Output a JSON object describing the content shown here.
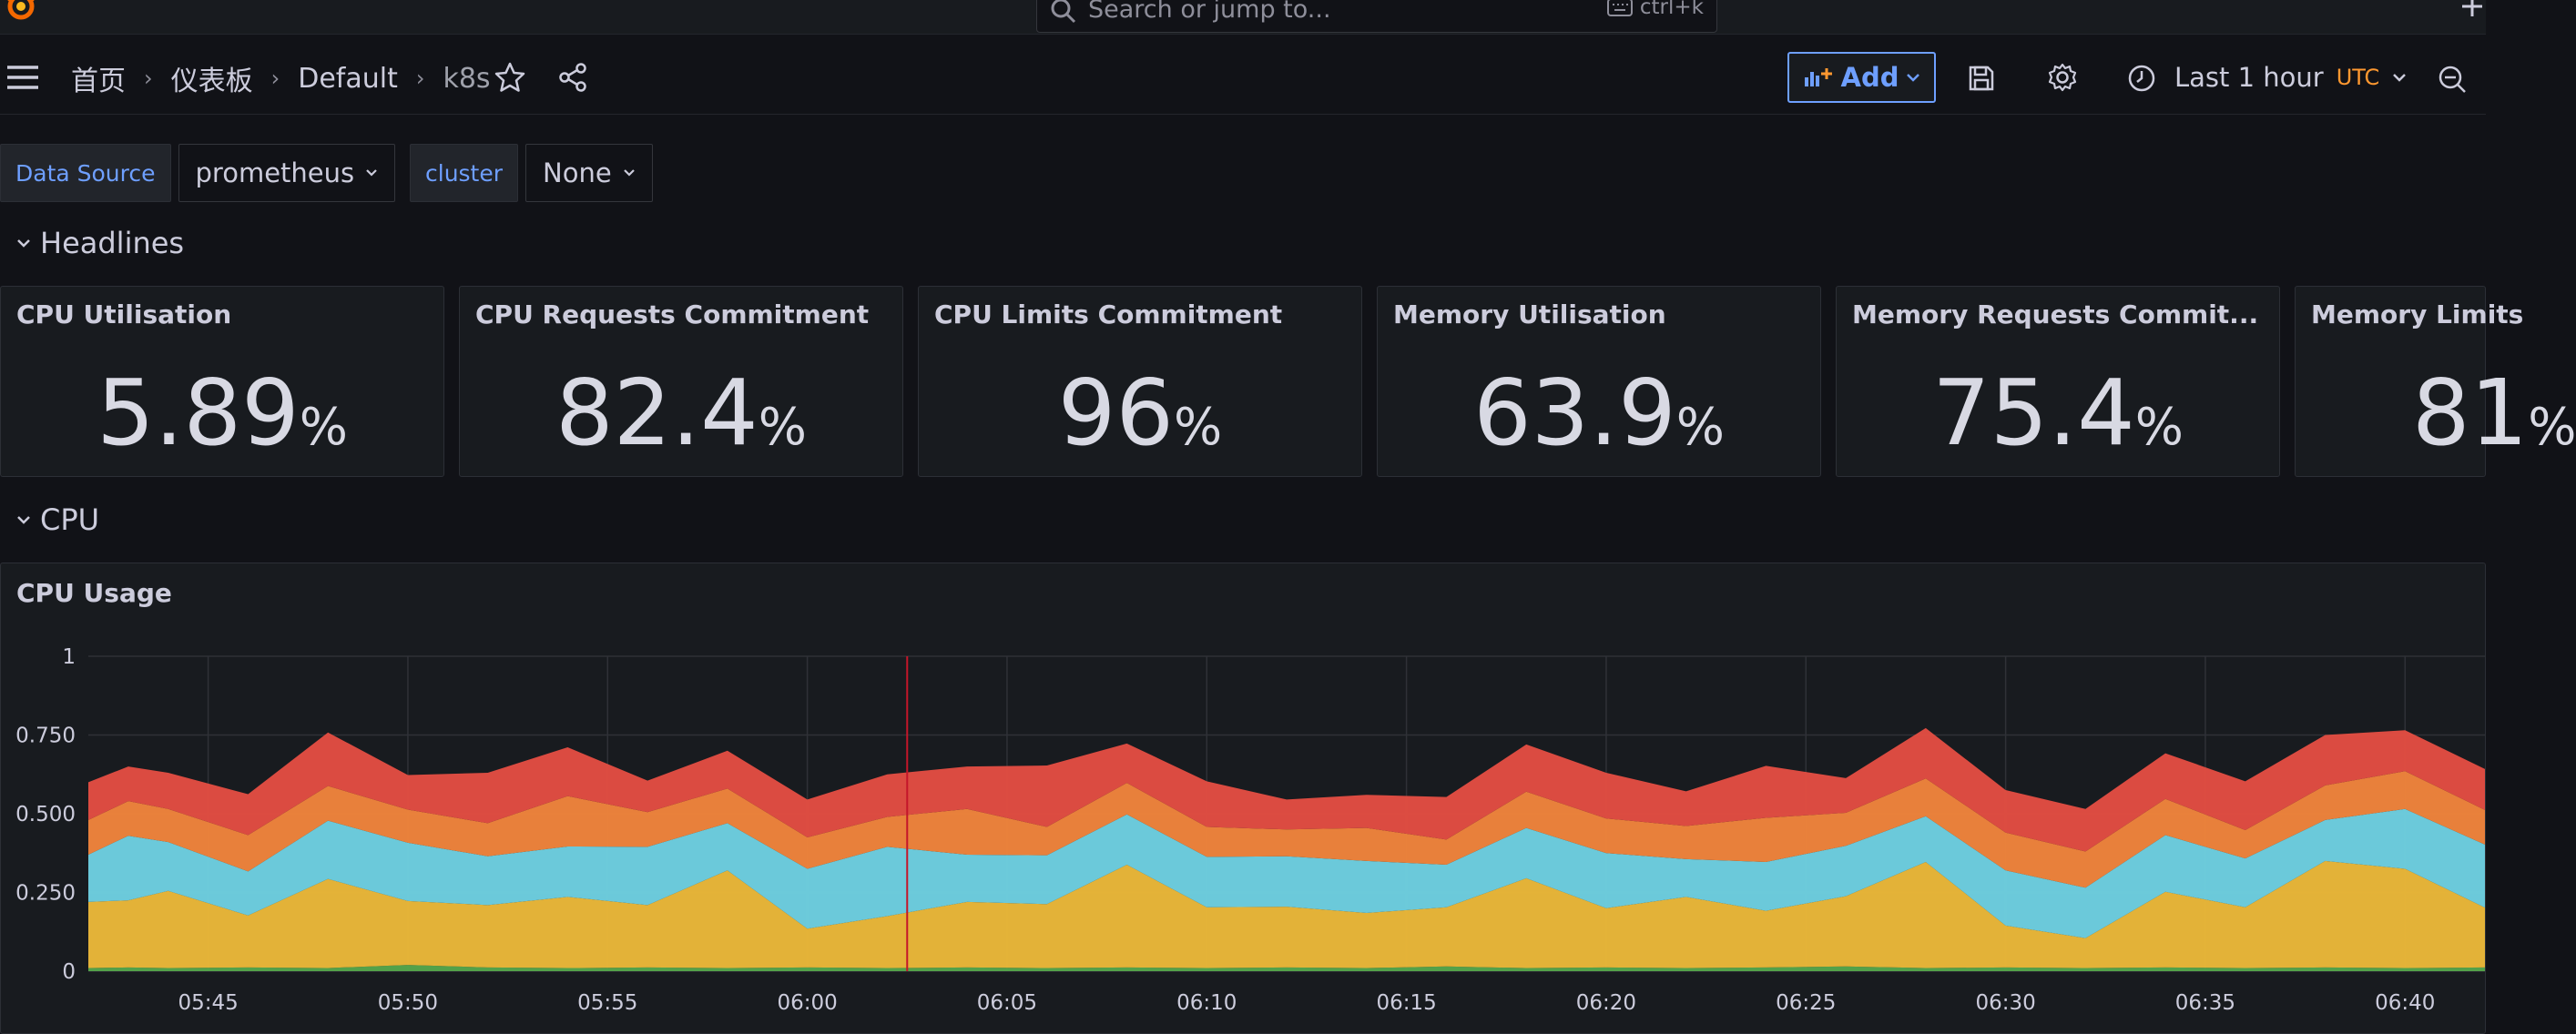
{
  "header": {
    "search_placeholder": "Search or jump to...",
    "search_shortcut": "ctrl+k"
  },
  "breadcrumb": {
    "home": "首页",
    "dashboards": "仪表板",
    "folder": "Default",
    "current": "k8s"
  },
  "toolbar": {
    "add_label": "Add",
    "time_range": "Last 1 hour",
    "timezone": "UTC"
  },
  "variables": [
    {
      "label": "Data Source",
      "value": "prometheus"
    },
    {
      "label": "cluster",
      "value": "None"
    }
  ],
  "rows": {
    "headlines": "Headlines",
    "cpu": "CPU"
  },
  "stats": [
    {
      "title": "CPU Utilisation",
      "value": "5.89",
      "unit": "%"
    },
    {
      "title": "CPU Requests Commitment",
      "value": "82.4",
      "unit": "%"
    },
    {
      "title": "CPU Limits Commitment",
      "value": "96",
      "unit": "%"
    },
    {
      "title": "Memory Utilisation",
      "value": "63.9",
      "unit": "%"
    },
    {
      "title": "Memory Requests Commit...",
      "value": "75.4",
      "unit": "%"
    },
    {
      "title": "Memory Limits",
      "value": "81",
      "unit": "%"
    }
  ],
  "colors": {
    "accent": "#6e9fff",
    "utc": "#ff9830",
    "series": [
      "#56a64b",
      "#eab839",
      "#6ed0e0",
      "#ef843c",
      "#e24d42"
    ],
    "cursor": "#c4162a"
  },
  "chart_data": {
    "type": "area",
    "stacked": true,
    "title": "CPU Usage",
    "ylim": [
      0,
      1
    ],
    "yticks": [
      0,
      0.25,
      0.5,
      0.75,
      1
    ],
    "ytick_labels": [
      "0",
      "0.250",
      "0.500",
      "0.750",
      "1"
    ],
    "xlim": [
      "05:42",
      "06:42"
    ],
    "xticks": [
      "05:45",
      "05:50",
      "05:55",
      "06:00",
      "06:05",
      "06:10",
      "06:15",
      "06:20",
      "06:25",
      "06:30",
      "06:35",
      "06:40"
    ],
    "grid": true,
    "legend": "none",
    "cursor_x": "06:02:30",
    "x": [
      "05:42",
      "05:43",
      "05:44",
      "05:46",
      "05:48",
      "05:50",
      "05:52",
      "05:54",
      "05:56",
      "05:58",
      "06:00",
      "06:02",
      "06:04",
      "06:06",
      "06:08",
      "06:10",
      "06:12",
      "06:14",
      "06:16",
      "06:18",
      "06:20",
      "06:22",
      "06:24",
      "06:26",
      "06:28",
      "06:30",
      "06:32",
      "06:34",
      "06:36",
      "06:38",
      "06:40",
      "06:42"
    ],
    "series": [
      {
        "values": [
          0.01,
          0.012,
          0.01,
          0.012,
          0.01,
          0.02,
          0.012,
          0.01,
          0.012,
          0.01,
          0.012,
          0.01,
          0.012,
          0.01,
          0.012,
          0.01,
          0.012,
          0.01,
          0.015,
          0.01,
          0.012,
          0.01,
          0.012,
          0.015,
          0.01,
          0.012,
          0.01,
          0.012,
          0.01,
          0.012,
          0.01,
          0.012
        ]
      },
      {
        "values": [
          0.21,
          0.213,
          0.245,
          0.165,
          0.283,
          0.203,
          0.198,
          0.226,
          0.198,
          0.31,
          0.123,
          0.165,
          0.208,
          0.203,
          0.326,
          0.193,
          0.193,
          0.175,
          0.188,
          0.285,
          0.188,
          0.226,
          0.18,
          0.223,
          0.337,
          0.133,
          0.095,
          0.24,
          0.193,
          0.338,
          0.315,
          0.19
        ]
      },
      {
        "values": [
          0.15,
          0.205,
          0.155,
          0.14,
          0.185,
          0.185,
          0.155,
          0.16,
          0.185,
          0.15,
          0.19,
          0.22,
          0.15,
          0.155,
          0.16,
          0.16,
          0.16,
          0.165,
          0.135,
          0.16,
          0.175,
          0.12,
          0.155,
          0.16,
          0.145,
          0.175,
          0.16,
          0.18,
          0.155,
          0.13,
          0.19,
          0.2
        ]
      },
      {
        "values": [
          0.11,
          0.11,
          0.105,
          0.115,
          0.11,
          0.105,
          0.105,
          0.16,
          0.11,
          0.11,
          0.1,
          0.095,
          0.145,
          0.09,
          0.1,
          0.095,
          0.085,
          0.105,
          0.08,
          0.115,
          0.11,
          0.105,
          0.14,
          0.105,
          0.12,
          0.12,
          0.115,
          0.115,
          0.09,
          0.11,
          0.12,
          0.11
        ]
      },
      {
        "values": [
          0.12,
          0.11,
          0.115,
          0.13,
          0.17,
          0.11,
          0.16,
          0.155,
          0.1,
          0.12,
          0.12,
          0.135,
          0.135,
          0.195,
          0.125,
          0.145,
          0.095,
          0.105,
          0.135,
          0.15,
          0.145,
          0.11,
          0.165,
          0.11,
          0.16,
          0.135,
          0.135,
          0.145,
          0.155,
          0.16,
          0.13,
          0.13
        ]
      }
    ]
  }
}
